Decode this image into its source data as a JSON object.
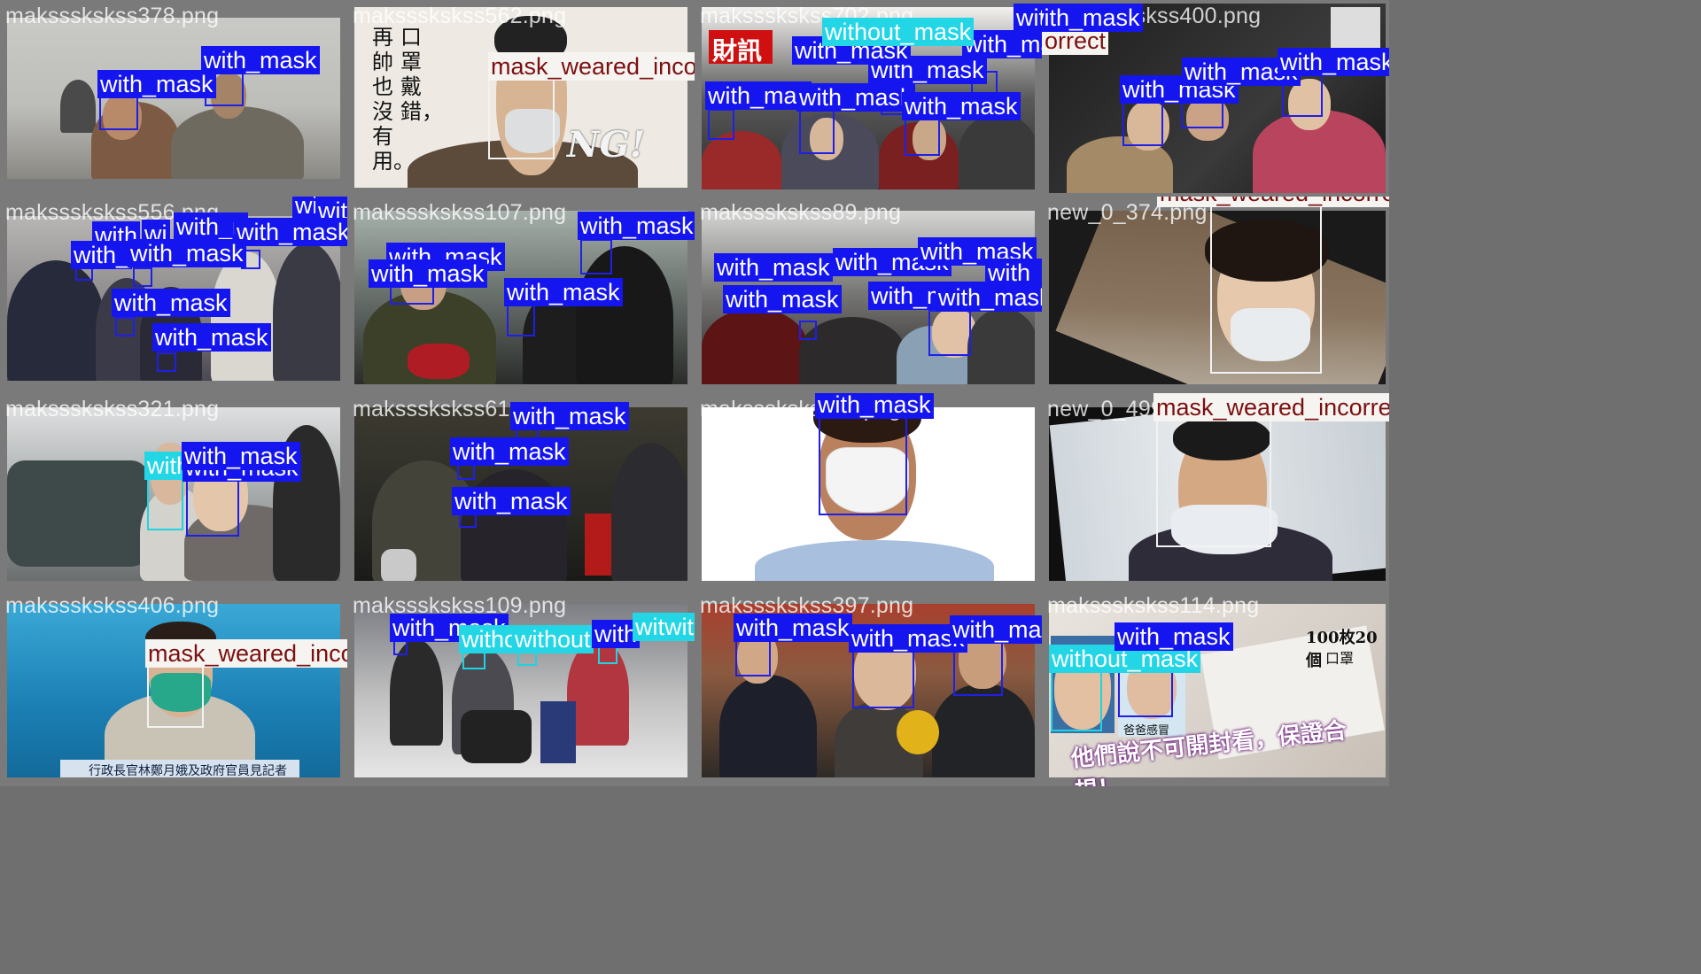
{
  "colors": {
    "with_mask": "#1515ef",
    "without_mask": "#22d6e6",
    "mask_weared_incorrect": "#f6f4f1"
  },
  "tiles": [
    {
      "filename": "makssskskss378.png",
      "labels": [
        "with_mask",
        "with_mask"
      ]
    },
    {
      "filename": "makssskskss562.png",
      "labels": [
        "mask_weared_incorrect"
      ],
      "texts": [
        "口罩戴錯，",
        "再帥也沒有用。",
        "NG!"
      ]
    },
    {
      "filename": "makssskskss702.png",
      "labels": [
        "without_mask",
        "with_mask",
        "with_mask",
        "with_mask",
        "with_mas",
        "with_mask",
        "with_mask",
        "with_mask"
      ],
      "texts": [
        "財訊"
      ]
    },
    {
      "filename": "makssskskss400.png",
      "labels": [
        "with_mask",
        "with_mask",
        "with_mask",
        "with_mask",
        "orrect"
      ]
    },
    {
      "filename": "makssskskss556.png",
      "labels": [
        "wit",
        "with_mask",
        "with_",
        "wi",
        "with_n",
        "with_mask",
        "with",
        "with_mask",
        "with_mask",
        "with_mask"
      ]
    },
    {
      "filename": "makssskskss107.png",
      "labels": [
        "with_mask",
        "with_mask",
        "with_mask",
        "with_mask"
      ]
    },
    {
      "filename": "makssskskss89.png",
      "labels": [
        "with_mask",
        "with_mask",
        "with_mask",
        "with_mask",
        "with_mask",
        "with_mask",
        "with_mask"
      ]
    },
    {
      "filename": "new_0_374.png",
      "labels": [
        "mask_weared_incorrect"
      ]
    },
    {
      "filename": "makssskskss321.png",
      "labels": [
        "with_mask",
        "with_mask",
        "without_mask"
      ]
    },
    {
      "filename": "makssskskss61.png",
      "labels": [
        "with_mask",
        "with_mask",
        "with_mask"
      ]
    },
    {
      "filename": "makssskskss27.png",
      "labels": [
        "with_mask"
      ]
    },
    {
      "filename": "new_0_499.png",
      "labels": [
        "mask_weared_incorrect"
      ]
    },
    {
      "filename": "makssskskss406.png",
      "labels": [
        "mask_weared_incorrect"
      ],
      "texts": [
        "行政長官林鄭月娥及政府官員見記者"
      ]
    },
    {
      "filename": "makssskskss109.png",
      "labels": [
        "with_mask",
        "witho",
        "without",
        "with",
        "witwithout"
      ]
    },
    {
      "filename": "makssskskss397.png",
      "labels": [
        "with_mask",
        "with_mask",
        "with_mask"
      ]
    },
    {
      "filename": "makssskskss114.png",
      "labels": [
        "with_mask",
        "without_mask"
      ],
      "texts": [
        "他們說不可開封看，保證合規！",
        "100枚20個",
        "口罩",
        "爸爸感冒"
      ]
    }
  ]
}
